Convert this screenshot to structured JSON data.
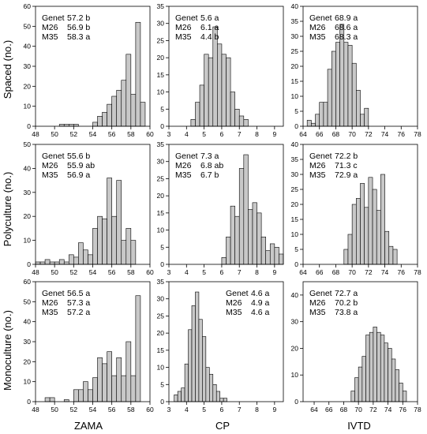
{
  "figure": {
    "row_labels": [
      "Spaced (no.)",
      "Polyculture (no.)",
      "Monoculture (no.)"
    ],
    "col_labels": [
      "ZAMA",
      "CP",
      "IVTD"
    ]
  },
  "chart_data": [
    {
      "type": "bar",
      "row": 0,
      "col": 0,
      "xlim": [
        48,
        60
      ],
      "xticks": [
        48,
        50,
        52,
        54,
        56,
        58,
        60
      ],
      "ylim": [
        0,
        60
      ],
      "yticks": [
        0,
        10,
        20,
        30,
        40,
        50,
        60
      ],
      "bin_width": 0.5,
      "x": [
        50.5,
        51,
        51.5,
        52,
        54,
        54.5,
        55,
        55.5,
        56,
        56.5,
        57,
        57.5,
        58,
        58.5,
        59,
        59.5
      ],
      "values": [
        1,
        1,
        1,
        1,
        2,
        5,
        7,
        11,
        15,
        18,
        23,
        36,
        16,
        52,
        12,
        0
      ],
      "annotations": [
        "Genet 57.2 b",
        "M26   56.9 b",
        "M35   58.3 a"
      ]
    },
    {
      "type": "bar",
      "row": 0,
      "col": 1,
      "xlim": [
        3,
        9.5
      ],
      "xticks": [
        3,
        4,
        5,
        6,
        7,
        8,
        9
      ],
      "ylim": [
        0,
        35
      ],
      "yticks": [
        0,
        5,
        10,
        15,
        20,
        25,
        30,
        35
      ],
      "bin_width": 0.25,
      "x": [
        4.25,
        4.5,
        4.75,
        5,
        5.25,
        5.5,
        5.75,
        6,
        6.25,
        6.5,
        6.75,
        7,
        7.25
      ],
      "values": [
        2,
        7,
        12,
        21,
        20,
        29,
        24,
        21,
        20,
        10,
        5,
        3,
        2
      ],
      "annotations": [
        "Genet 5.6 a",
        "M26   6.1 a",
        "M35   4.4 b"
      ]
    },
    {
      "type": "bar",
      "row": 0,
      "col": 2,
      "xlim": [
        64,
        78
      ],
      "xticks": [
        64,
        66,
        68,
        70,
        72,
        74,
        76,
        78
      ],
      "ylim": [
        0,
        40
      ],
      "yticks": [
        0,
        5,
        10,
        15,
        20,
        25,
        30,
        35,
        40
      ],
      "bin_width": 0.5,
      "x": [
        64.5,
        65,
        65.5,
        66,
        66.5,
        67,
        67.5,
        68,
        68.5,
        69,
        69.5,
        70,
        70.5,
        71,
        71.5
      ],
      "values": [
        2,
        1,
        4,
        8,
        8,
        19,
        25,
        28,
        34,
        28,
        27,
        21,
        12,
        4,
        6
      ],
      "annotations": [
        "Genet 68.9 a",
        "M26   68.6 a",
        "M35   68.3 a"
      ]
    },
    {
      "type": "bar",
      "row": 1,
      "col": 0,
      "xlim": [
        48,
        60
      ],
      "xticks": [
        48,
        50,
        52,
        54,
        56,
        58,
        60
      ],
      "ylim": [
        0,
        50
      ],
      "yticks": [
        0,
        10,
        20,
        30,
        40,
        50
      ],
      "bin_width": 0.5,
      "x": [
        48,
        48.5,
        49,
        49.5,
        50,
        50.5,
        51,
        51.5,
        52,
        52.5,
        53,
        53.5,
        54,
        54.5,
        55,
        55.5,
        56,
        56.5,
        57,
        57.5,
        58,
        58.5
      ],
      "values": [
        1,
        1,
        2,
        1,
        1,
        2,
        1,
        4,
        3,
        9,
        6,
        4,
        15,
        20,
        19,
        36,
        20,
        35,
        10,
        15,
        10,
        0
      ],
      "annotations": [
        "Genet 55.6 b",
        "M26   55.9 ab",
        "M35   56.9 a"
      ]
    },
    {
      "type": "bar",
      "row": 1,
      "col": 1,
      "xlim": [
        3,
        9.5
      ],
      "xticks": [
        3,
        4,
        5,
        6,
        7,
        8,
        9
      ],
      "ylim": [
        0,
        35
      ],
      "yticks": [
        0,
        5,
        10,
        15,
        20,
        25,
        30,
        35
      ],
      "bin_width": 0.25,
      "x": [
        6,
        6.25,
        6.5,
        6.75,
        7,
        7.25,
        7.5,
        7.75,
        8,
        8.25,
        8.5,
        8.75,
        9,
        9.25
      ],
      "values": [
        2,
        8,
        17,
        14,
        28,
        32,
        16,
        18,
        15,
        8,
        4,
        6,
        5,
        3
      ],
      "annotations": [
        "Genet 7.3 a",
        "M26   6.8 ab",
        "M35   6.7 b"
      ]
    },
    {
      "type": "bar",
      "row": 1,
      "col": 2,
      "xlim": [
        64,
        78
      ],
      "xticks": [
        64,
        66,
        68,
        70,
        72,
        74,
        76,
        78
      ],
      "ylim": [
        0,
        40
      ],
      "yticks": [
        0,
        5,
        10,
        15,
        20,
        25,
        30,
        35,
        40
      ],
      "bin_width": 0.5,
      "x": [
        69,
        69.5,
        70,
        70.5,
        71,
        71.5,
        72,
        72.5,
        73,
        73.5,
        74,
        74.5,
        75
      ],
      "values": [
        5,
        10,
        20,
        22,
        27,
        19,
        29,
        25,
        18,
        30,
        11,
        6,
        5
      ],
      "annotations": [
        "Genet 72.2 b",
        "M26   71.3 c",
        "M35   72.9 a"
      ]
    },
    {
      "type": "bar",
      "row": 2,
      "col": 0,
      "xlim": [
        48,
        60
      ],
      "xticks": [
        48,
        50,
        52,
        54,
        56,
        58,
        60
      ],
      "ylim": [
        0,
        60
      ],
      "yticks": [
        0,
        10,
        20,
        30,
        40,
        50,
        60
      ],
      "bin_width": 0.5,
      "x": [
        49,
        49.5,
        51,
        52,
        52.5,
        53,
        53.5,
        54,
        54.5,
        55,
        55.5,
        56,
        56.5,
        57,
        57.5,
        58,
        58.5
      ],
      "values": [
        2,
        2,
        1,
        6,
        6,
        10,
        6,
        12,
        22,
        19,
        25,
        13,
        22,
        13,
        30,
        13,
        53
      ],
      "annotations": [
        "Genet 56.5 a",
        "M26   57.3 a",
        "M35   57.2 a"
      ]
    },
    {
      "type": "bar",
      "row": 2,
      "col": 1,
      "xlim": [
        3,
        9.5
      ],
      "xticks": [
        3,
        4,
        5,
        6,
        7,
        8,
        9
      ],
      "ylim": [
        0,
        35
      ],
      "yticks": [
        0,
        5,
        10,
        15,
        20,
        25,
        30,
        35
      ],
      "bin_width": 0.2,
      "x": [
        3.3,
        3.5,
        3.7,
        3.9,
        4.1,
        4.3,
        4.5,
        4.7,
        4.9,
        5.1,
        5.3,
        5.5,
        5.7,
        5.9,
        6.1
      ],
      "values": [
        2,
        3,
        4,
        11,
        21,
        28,
        32,
        24,
        19,
        10,
        8,
        5,
        3,
        1,
        1
      ],
      "annotations": [
        "Genet 4.6 a",
        "M26   4.9 a",
        "M35   4.6 a"
      ]
    },
    {
      "type": "bar",
      "row": 2,
      "col": 2,
      "xlim": [
        62.5,
        78
      ],
      "xticks": [
        64,
        66,
        68,
        70,
        72,
        74,
        76,
        78
      ],
      "ylim": [
        0,
        45
      ],
      "yticks": [
        0,
        10,
        20,
        30,
        40
      ],
      "bin_width": 0.5,
      "x": [
        69,
        69.5,
        70,
        70.5,
        71,
        71.5,
        72,
        72.5,
        73,
        73.5,
        74,
        74.5,
        75,
        75.5,
        76
      ],
      "values": [
        4,
        9,
        13,
        17,
        25,
        26,
        28,
        26,
        25,
        22,
        20,
        16,
        12,
        7,
        4
      ],
      "annotations": [
        "Genet 72.7 a",
        "M26   70.2 b",
        "M35   73.8 a"
      ]
    }
  ]
}
